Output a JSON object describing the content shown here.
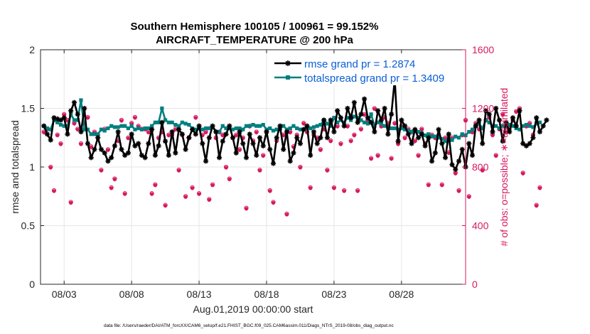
{
  "figure": {
    "title_line1": "Southern Hemisphere 100105 / 100961 = 99.152%",
    "title_line2": "AIRCRAFT_TEMPERATURE @ 200 hPa",
    "footnote": "data file: /Users/raeder/DAI/ATM_forcXX/CAM6_setup/f.e21.FHIST_BGC.f09_025.CAM6assim.011/Diags_NTrS_2019-08/obs_diag_output.nc"
  },
  "colors": {
    "rmse": "#000000",
    "spread": "#007f7f",
    "obs": "#d6195f",
    "grid": "#e6e6e6",
    "legend_text": "#0a5fd6"
  },
  "chart_data": {
    "type": "line",
    "title": "Southern Hemisphere 100105 / 100961 = 99.152%",
    "subtitle": "AIRCRAFT_TEMPERATURE @ 200 hPa",
    "xlabel": "Aug.01,2019 00:00:00 start",
    "ylabel_left": "rmse and totalspread",
    "ylabel_right": "# of obs: o=possible; ∗=assimilated",
    "x_ticks": [
      "08/03",
      "08/08",
      "08/13",
      "08/18",
      "08/23",
      "08/28"
    ],
    "x_tick_days": [
      3,
      8,
      13,
      18,
      23,
      28
    ],
    "xlim_days": [
      1.25,
      32.75
    ],
    "ylim_left": [
      0,
      2
    ],
    "y_ticks_left": [
      "0",
      "0.5",
      "1",
      "1.5",
      "2"
    ],
    "ylim_right": [
      0,
      1600
    ],
    "y_ticks_right": [
      "0",
      "400",
      "800",
      "1200",
      "1600"
    ],
    "grid": true,
    "legend_location": "top-right",
    "x_start_day": 1.5,
    "x_step_days": 0.25,
    "series": [
      {
        "name": "rmse grand pr = 1.2874",
        "axis": "left",
        "values": [
          1.35,
          1.28,
          1.23,
          1.42,
          1.41,
          1.4,
          1.42,
          1.28,
          1.48,
          1.55,
          1.45,
          1.3,
          1.5,
          1.2,
          1.08,
          1.15,
          1.25,
          1.15,
          1.12,
          1.05,
          1.08,
          1.18,
          1.3,
          1.15,
          1.1,
          1.12,
          1.28,
          1.18,
          1.2,
          1.1,
          1.08,
          1.2,
          1.32,
          1.1,
          1.18,
          1.38,
          1.22,
          1.1,
          1.3,
          1.12,
          1.32,
          1.28,
          1.15,
          1.25,
          1.32,
          1.28,
          1.35,
          1.2,
          1.05,
          1.25,
          1.35,
          1.3,
          1.08,
          1.22,
          1.28,
          1.35,
          1.25,
          1.12,
          1.3,
          1.2,
          1.08,
          1.28,
          1.2,
          1.1,
          1.25,
          1.18,
          1.3,
          1.15,
          1.03,
          1.25,
          1.35,
          1.15,
          1.3,
          1.05,
          1.12,
          1.25,
          1.2,
          1.32,
          1.35,
          1.1,
          1.3,
          1.2,
          1.25,
          1.4,
          1.25,
          1.4,
          1.3,
          1.48,
          1.42,
          1.35,
          1.5,
          1.42,
          1.55,
          1.38,
          1.45,
          1.58,
          1.42,
          1.38,
          1.3,
          1.48,
          1.4,
          1.5,
          1.28,
          1.45,
          1.75,
          1.22,
          1.4,
          1.35,
          1.28,
          1.2,
          1.32,
          1.25,
          1.28,
          1.18,
          1.25,
          1.05,
          1.12,
          1.32,
          1.2,
          1.08,
          1.28,
          1.02,
          0.98,
          1.05,
          1.15,
          1.0,
          1.2,
          1.1,
          1.35,
          1.4,
          1.2,
          1.48,
          1.45,
          1.3,
          1.5,
          1.4,
          1.22,
          1.38,
          1.3,
          1.42,
          1.35,
          1.48,
          1.2,
          1.18,
          1.2,
          1.25,
          1.42,
          1.3,
          1.35,
          1.4
        ]
      },
      {
        "name": "totalspread grand pr = 1.3409",
        "axis": "left",
        "values": [
          1.35,
          1.33,
          1.32,
          1.4,
          1.38,
          1.36,
          1.35,
          1.35,
          1.45,
          1.4,
          1.4,
          1.57,
          1.32,
          1.32,
          1.28,
          1.28,
          1.28,
          1.32,
          1.31,
          1.33,
          1.35,
          1.34,
          1.34,
          1.35,
          1.35,
          1.33,
          1.35,
          1.32,
          1.33,
          1.32,
          1.33,
          1.33,
          1.35,
          1.38,
          1.38,
          1.5,
          1.4,
          1.38,
          1.38,
          1.36,
          1.35,
          1.38,
          1.37,
          1.36,
          1.33,
          1.32,
          1.33,
          1.32,
          1.33,
          1.33,
          1.34,
          1.3,
          1.3,
          1.35,
          1.33,
          1.33,
          1.32,
          1.33,
          1.33,
          1.32,
          1.35,
          1.35,
          1.36,
          1.35,
          1.35,
          1.36,
          1.32,
          1.33,
          1.31,
          1.32,
          1.33,
          1.35,
          1.32,
          1.33,
          1.35,
          1.33,
          1.32,
          1.32,
          1.34,
          1.33,
          1.34,
          1.35,
          1.36,
          1.4,
          1.37,
          1.35,
          1.42,
          1.38,
          1.4,
          1.38,
          1.42,
          1.4,
          1.43,
          1.42,
          1.4,
          1.38,
          1.37,
          1.45,
          1.35,
          1.38,
          1.37,
          1.35,
          1.34,
          1.33,
          1.33,
          1.32,
          1.33,
          1.32,
          1.31,
          1.3,
          1.31,
          1.3,
          1.29,
          1.27,
          1.28,
          1.26,
          1.26,
          1.25,
          1.24,
          1.22,
          1.24,
          1.23,
          1.26,
          1.25,
          1.28,
          1.27,
          1.3,
          1.32,
          1.35,
          1.37,
          1.33,
          1.4,
          1.38,
          1.35,
          1.35,
          1.33,
          1.35,
          1.34,
          1.36,
          1.35,
          1.33,
          1.32,
          1.35,
          1.36,
          1.35,
          1.34,
          1.37,
          1.38
        ]
      },
      {
        "name": "possible",
        "axis": "right",
        "marker": "o",
        "values": [
          1040,
          1060,
          800,
          640,
          1020,
          960,
          1160,
          1120,
          560,
          1100,
          1060,
          960,
          1100,
          1140,
          940,
          1040,
          1020,
          780,
          1060,
          920,
          660,
          720,
          980,
          1120,
          620,
          1000,
          1100,
          1140,
          1080,
          1060,
          1060,
          1040,
          620,
          680,
          1000,
          1040,
          540,
          1020,
          1020,
          1060,
          780,
          1020,
          600,
          1000,
          660,
          1140,
          620,
          1020,
          1040,
          580,
          680,
          1000,
          1040,
          1020,
          800,
          720,
          1000,
          1020,
          920,
          1000,
          520,
          1080,
          980,
          1040,
          780,
          880,
          1040,
          640,
          560,
          980,
          1060,
          1020,
          480,
          1040,
          940,
          1020,
          800,
          1100,
          1040,
          660,
          1020,
          1000,
          920,
          1060,
          780,
          980,
          660,
          1080,
          960,
          640,
          1080,
          980,
          1020,
          640,
          1060,
          1160,
          1120,
          860,
          1200,
          880,
          1080,
          1140,
          1100,
          860,
          1100,
          960,
          1080,
          1000,
          1060,
          1040,
          980,
          880,
          1060,
          960,
          680,
          1020,
          1000,
          1020,
          680,
          1000,
          900,
          1000,
          760,
          640,
          1020,
          1120,
          600,
          1040,
          1100,
          1060,
          780,
          1120,
          1140,
          1020,
          880,
          1060,
          1160,
          1040,
          1060,
          1120,
          1180,
          1200,
          760,
          1080,
          1100,
          1020,
          540,
          660
        ]
      },
      {
        "name": "assimilated",
        "axis": "right",
        "marker": "*",
        "values": [
          1035,
          1055,
          795,
          635,
          1015,
          955,
          1155,
          1115,
          555,
          1095,
          1055,
          955,
          1095,
          1135,
          935,
          1035,
          1015,
          775,
          1055,
          915,
          655,
          715,
          975,
          1115,
          615,
          995,
          1095,
          1135,
          1075,
          1055,
          1055,
          1035,
          615,
          675,
          995,
          1035,
          535,
          1015,
          1015,
          1055,
          775,
          1015,
          595,
          995,
          655,
          1135,
          615,
          1015,
          1035,
          575,
          675,
          995,
          1035,
          1015,
          795,
          715,
          995,
          1015,
          915,
          995,
          515,
          1075,
          975,
          1035,
          775,
          875,
          1035,
          635,
          555,
          975,
          1055,
          1015,
          475,
          1035,
          935,
          1015,
          795,
          1095,
          1035,
          655,
          1015,
          995,
          915,
          1055,
          775,
          975,
          655,
          1075,
          955,
          635,
          1075,
          975,
          1015,
          635,
          1055,
          1155,
          1115,
          855,
          1195,
          875,
          1075,
          1135,
          1095,
          855,
          1095,
          955,
          1075,
          995,
          1055,
          1035,
          975,
          875,
          1055,
          955,
          675,
          1015,
          995,
          1015,
          675,
          995,
          895,
          995,
          755,
          635,
          1015,
          1115,
          595,
          1035,
          1095,
          1055,
          775,
          1115,
          1135,
          1015,
          875,
          1055,
          1155,
          1035,
          1055,
          1115,
          1175,
          1195,
          755,
          1075,
          1095,
          1015,
          535,
          655
        ]
      }
    ]
  }
}
